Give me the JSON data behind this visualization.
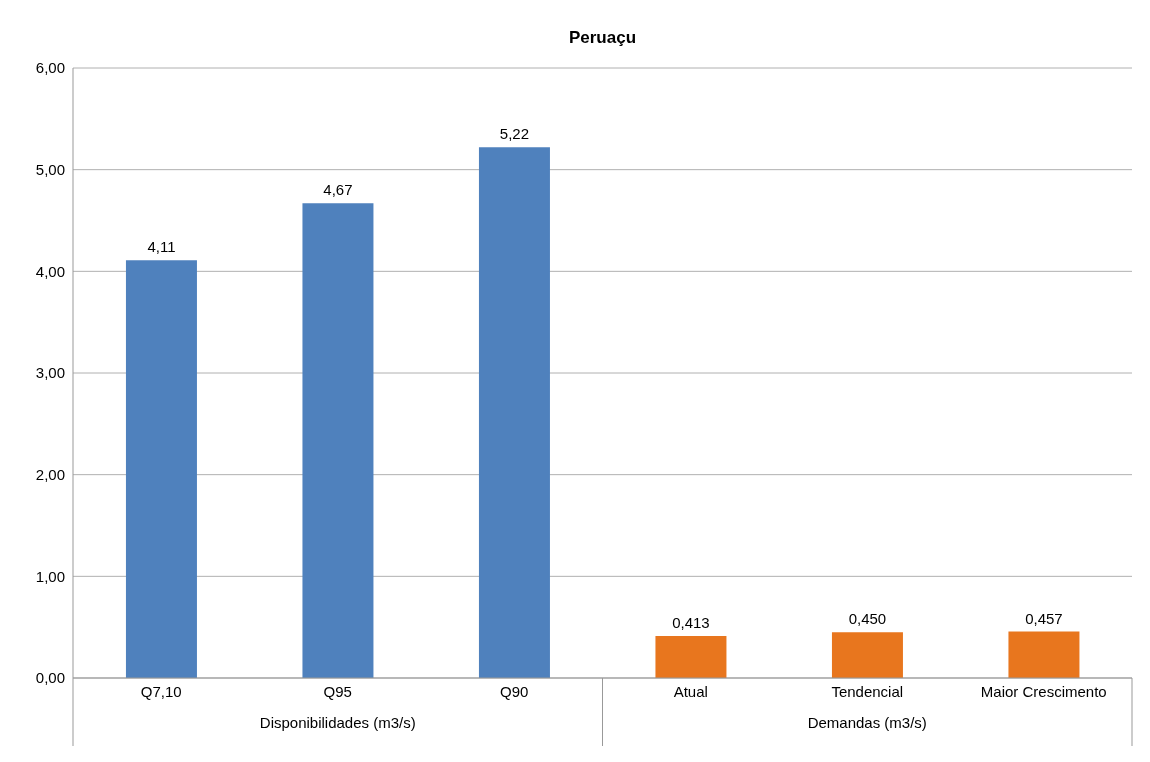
{
  "chart_data": {
    "type": "bar",
    "title": "Peruaçu",
    "categories": [
      "Q7,10",
      "Q95",
      "Q90",
      "Atual",
      "Tendencial",
      "Maior Crescimento"
    ],
    "values": [
      4.11,
      4.67,
      5.22,
      0.413,
      0.45,
      0.457
    ],
    "colors": [
      "#4f81bd",
      "#4f81bd",
      "#4f81bd",
      "#e8761e",
      "#e8761e",
      "#e8761e"
    ],
    "value_labels": [
      "4,11",
      "4,67",
      "5,22",
      "0,413",
      "0,450",
      "0,457"
    ],
    "ylim": [
      0,
      6
    ],
    "yticks": [
      {
        "value": 0,
        "label": "0,00"
      },
      {
        "value": 1,
        "label": "1,00"
      },
      {
        "value": 2,
        "label": "2,00"
      },
      {
        "value": 3,
        "label": "3,00"
      },
      {
        "value": 4,
        "label": "4,00"
      },
      {
        "value": 5,
        "label": "5,00"
      },
      {
        "value": 6,
        "label": "6,00"
      }
    ],
    "grid": "y",
    "annotations": [
      "Disponibilidades (m3/s)",
      "Demandas (m3/s)"
    ]
  }
}
